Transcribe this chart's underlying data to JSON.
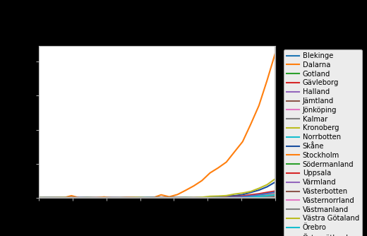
{
  "regions": [
    "Blekinge",
    "Dalarna",
    "Gotland",
    "Gävleborg",
    "Halland",
    "Jämtland",
    "Jönköping",
    "Kalmar",
    "Kronoberg",
    "Norrbotten",
    "Skåne",
    "Stockholm",
    "Södermanland",
    "Uppsala",
    "Värmland",
    "Västerbotten",
    "Västernorrland",
    "Västmanland",
    "Västra Götaland",
    "Örebro",
    "Östergötland"
  ],
  "color_map": {
    "Blekinge": "#1f77b4",
    "Dalarna": "#ff7f0e",
    "Gotland": "#2ca02c",
    "Gävleborg": "#d62728",
    "Halland": "#9467bd",
    "Jämtland": "#8c564b",
    "Jönköping": "#e377c2",
    "Kalmar": "#7f7f7f",
    "Kronoberg": "#bcbd22",
    "Norrbotten": "#17becf",
    "Skåne": "#1a4fa0",
    "Stockholm": "#ff7f0e",
    "Södermanland": "#2ca02c",
    "Uppsala": "#d62728",
    "Värmland": "#9467bd",
    "Västerbotten": "#8c564b",
    "Västernorrland": "#e377c2",
    "Västmanland": "#7f7f7f",
    "Västra Götaland": "#bcbd22",
    "Örebro": "#17becf",
    "Östergötland": "#4472c4"
  },
  "n_points": 30,
  "figure_facecolor": "#000000",
  "axes_facecolor": "#ffffff",
  "legend_facecolor": "#ececec",
  "legend_edgecolor": "#aaaaaa",
  "axes_outer_facecolor": "#d0d0d0",
  "spine_color": "#aaaaaa"
}
